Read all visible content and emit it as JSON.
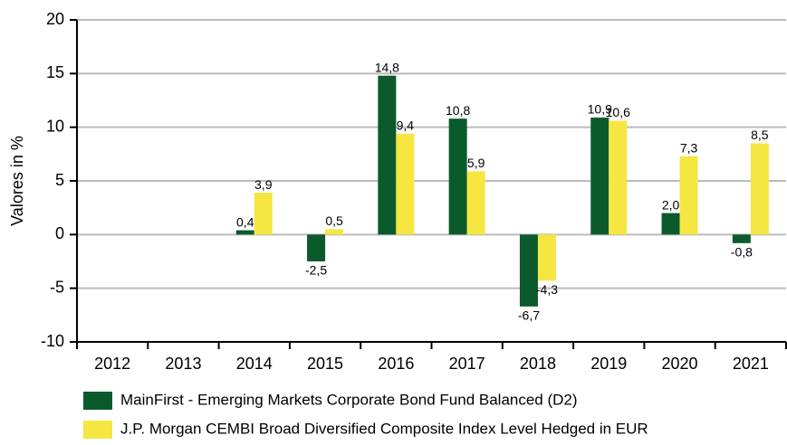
{
  "chart_data": {
    "type": "bar",
    "y_axis_label": "Valores in %",
    "categories": [
      "2012",
      "2013",
      "2014",
      "2015",
      "2016",
      "2017",
      "2018",
      "2019",
      "2020",
      "2021"
    ],
    "series": [
      {
        "name": "MainFirst - Emerging Markets Corporate Bond Fund Balanced (D2)",
        "color": "#0a5a2c",
        "values": [
          null,
          null,
          0.4,
          -2.5,
          14.8,
          10.8,
          -6.7,
          10.9,
          2.0,
          -0.8
        ],
        "value_labels": [
          null,
          null,
          "0,4",
          "-2,5",
          "14,8",
          "10,8",
          "-6,7",
          "10,9",
          "2,0",
          "-0,8"
        ]
      },
      {
        "name": "J.P. Morgan CEMBI Broad Diversified Composite Index Level Hedged in EUR",
        "color": "#f5e642",
        "values": [
          null,
          null,
          3.9,
          0.5,
          9.4,
          5.9,
          -4.3,
          10.6,
          7.3,
          8.5
        ],
        "value_labels": [
          null,
          null,
          "3,9",
          "0,5",
          "9,4",
          "5,9",
          "-4,3",
          "10,6",
          "7,3",
          "8,5"
        ]
      }
    ],
    "ylim": [
      -10,
      20
    ],
    "yticks": [
      -10,
      -5,
      0,
      5,
      10,
      15,
      20
    ],
    "grid": true,
    "legend": "bottom"
  }
}
